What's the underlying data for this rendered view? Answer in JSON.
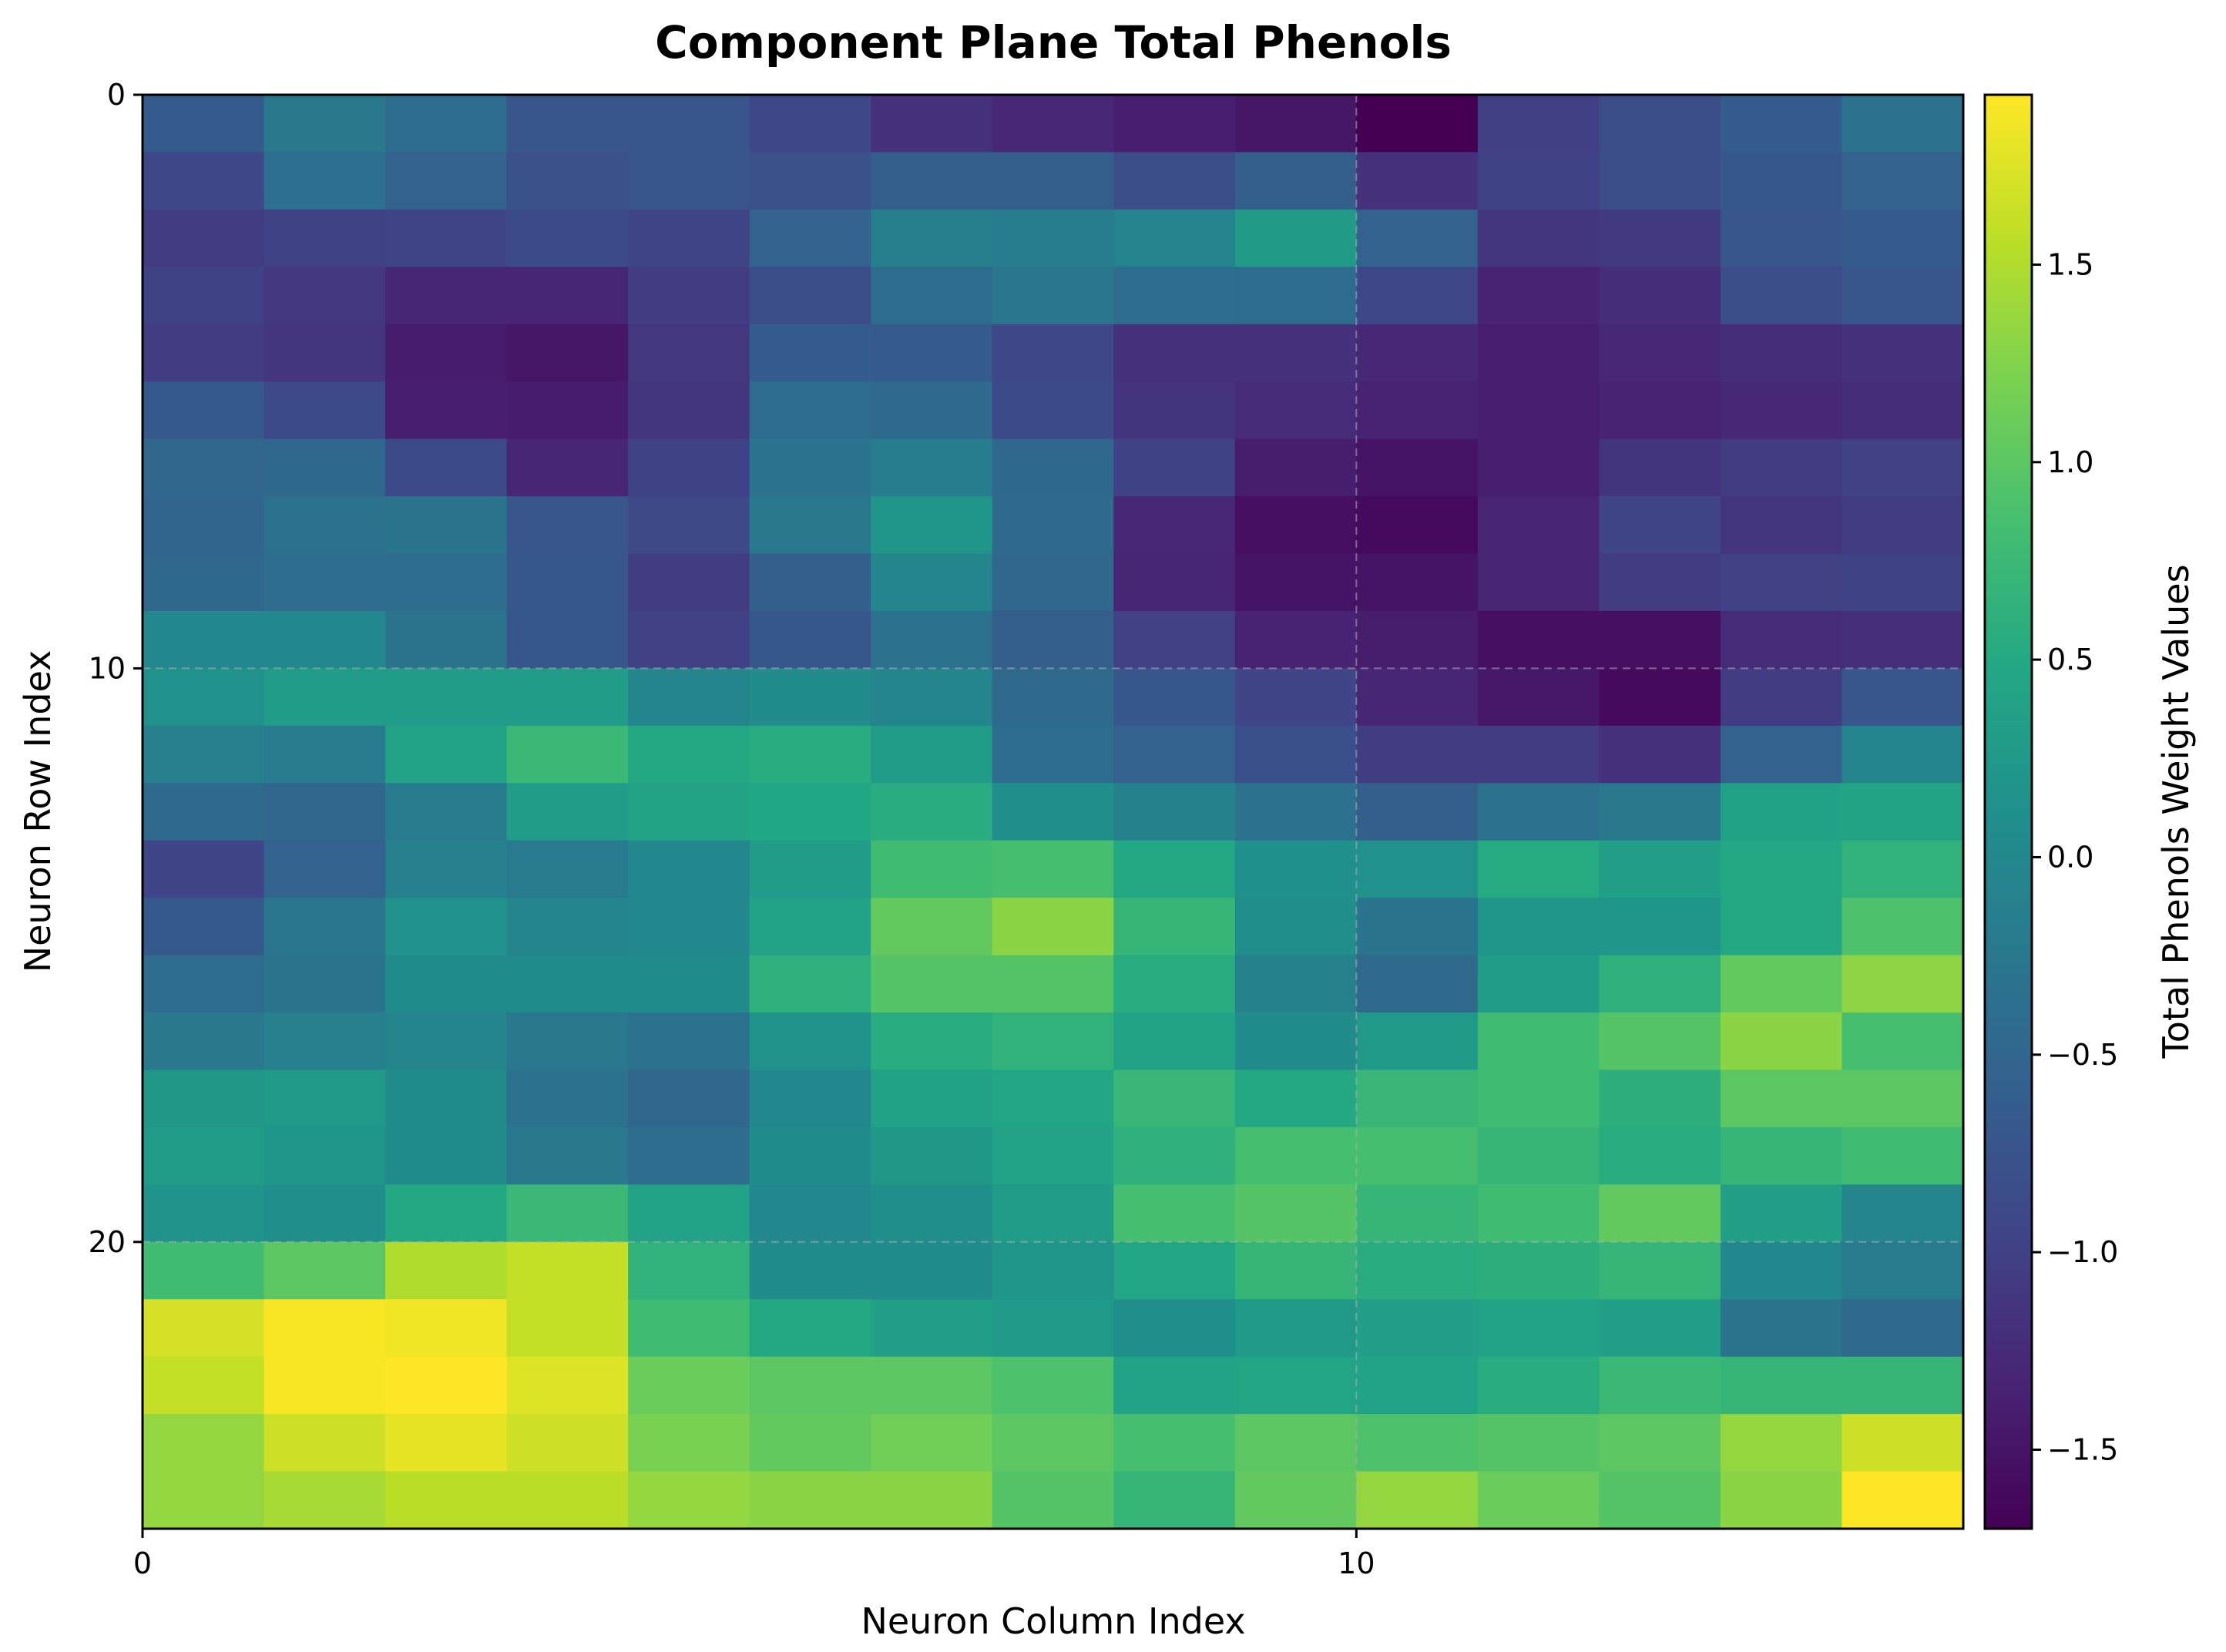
{
  "chart_data": {
    "type": "heatmap",
    "title": "Component Plane Total Phenols",
    "xlabel": "Neuron Column Index",
    "ylabel": "Neuron Row Index",
    "colorbar_label": "Total Phenols Weight Values",
    "colormap": "viridis",
    "rows": 25,
    "cols": 15,
    "xlim": [
      0,
      15
    ],
    "ylim": [
      25,
      0
    ],
    "x_ticks": [
      0,
      10
    ],
    "x_tick_labels": [
      "0",
      "10"
    ],
    "y_ticks": [
      0,
      10,
      20
    ],
    "y_tick_labels": [
      "0",
      "10",
      "20"
    ],
    "vmin": -1.7,
    "vmax": 1.93,
    "colorbar_ticks": [
      1.5,
      1.0,
      0.5,
      0.0,
      -0.5,
      -1.0,
      -1.5
    ],
    "colorbar_tick_labels": [
      "1.5",
      "1.0",
      "0.5",
      "0.0",
      "−0.5",
      "−1.0",
      "−1.5"
    ],
    "grid": "dashed at major ticks",
    "values": [
      [
        -0.65,
        -0.25,
        -0.42,
        -0.72,
        -0.72,
        -0.92,
        -1.18,
        -1.28,
        -1.38,
        -1.48,
        -1.7,
        -1.02,
        -0.82,
        -0.62,
        -0.35
      ],
      [
        -0.92,
        -0.38,
        -0.55,
        -0.78,
        -0.72,
        -0.78,
        -0.6,
        -0.6,
        -0.82,
        -0.6,
        -1.18,
        -0.98,
        -0.82,
        -0.7,
        -0.55
      ],
      [
        -1.05,
        -0.98,
        -0.95,
        -0.88,
        -0.95,
        -0.55,
        -0.15,
        -0.18,
        -0.08,
        0.28,
        -0.55,
        -1.12,
        -1.08,
        -0.72,
        -0.65
      ],
      [
        -0.98,
        -1.1,
        -1.3,
        -1.3,
        -1.05,
        -0.82,
        -0.42,
        -0.28,
        -0.4,
        -0.42,
        -0.92,
        -1.35,
        -1.22,
        -0.82,
        -0.72
      ],
      [
        -1.05,
        -1.12,
        -1.42,
        -1.48,
        -1.1,
        -0.62,
        -0.65,
        -0.92,
        -1.18,
        -1.18,
        -1.28,
        -1.38,
        -1.28,
        -1.22,
        -1.18
      ],
      [
        -0.68,
        -0.88,
        -1.38,
        -1.42,
        -1.12,
        -0.42,
        -0.45,
        -0.88,
        -1.15,
        -1.25,
        -1.35,
        -1.38,
        -1.35,
        -1.28,
        -1.22
      ],
      [
        -0.5,
        -0.48,
        -0.88,
        -1.3,
        -0.98,
        -0.32,
        -0.18,
        -0.48,
        -0.98,
        -1.4,
        -1.5,
        -1.38,
        -1.15,
        -1.05,
        -1.0
      ],
      [
        -0.52,
        -0.35,
        -0.3,
        -0.72,
        -0.9,
        -0.25,
        0.2,
        -0.45,
        -1.28,
        -1.55,
        -1.6,
        -1.32,
        -0.95,
        -1.12,
        -1.05
      ],
      [
        -0.48,
        -0.4,
        -0.4,
        -0.7,
        -1.05,
        -0.6,
        -0.05,
        -0.5,
        -1.3,
        -1.5,
        -1.5,
        -1.32,
        -1.05,
        -1.0,
        -0.98
      ],
      [
        0.0,
        0.0,
        -0.3,
        -0.7,
        -1.0,
        -0.7,
        -0.35,
        -0.6,
        -1.0,
        -1.35,
        -1.4,
        -1.55,
        -1.55,
        -1.25,
        -1.2
      ],
      [
        0.15,
        0.3,
        0.3,
        0.3,
        -0.05,
        0.05,
        -0.05,
        -0.45,
        -0.7,
        -0.95,
        -1.3,
        -1.45,
        -1.6,
        -1.05,
        -0.72
      ],
      [
        -0.12,
        -0.22,
        0.4,
        0.75,
        0.5,
        0.55,
        0.3,
        -0.42,
        -0.55,
        -0.8,
        -1.05,
        -1.05,
        -1.18,
        -0.55,
        -0.05
      ],
      [
        -0.45,
        -0.5,
        -0.2,
        0.3,
        0.42,
        0.48,
        0.55,
        0.1,
        -0.1,
        -0.35,
        -0.6,
        -0.35,
        -0.25,
        0.38,
        0.42
      ],
      [
        -0.95,
        -0.55,
        -0.12,
        -0.22,
        0.0,
        0.3,
        0.8,
        0.85,
        0.5,
        0.12,
        0.15,
        0.52,
        0.35,
        0.5,
        0.65
      ],
      [
        -0.68,
        -0.28,
        0.15,
        -0.05,
        0.0,
        0.4,
        1.05,
        1.3,
        0.7,
        0.1,
        -0.3,
        0.2,
        0.2,
        0.5,
        0.9
      ],
      [
        -0.4,
        -0.3,
        0.05,
        0.05,
        0.05,
        0.62,
        0.95,
        0.95,
        0.55,
        -0.1,
        -0.45,
        0.3,
        0.62,
        1.05,
        1.32
      ],
      [
        -0.25,
        -0.12,
        -0.05,
        -0.25,
        -0.35,
        0.18,
        0.55,
        0.65,
        0.42,
        0.05,
        0.25,
        0.8,
        0.95,
        1.3,
        0.85
      ],
      [
        0.22,
        0.25,
        0.05,
        -0.35,
        -0.5,
        0.0,
        0.38,
        0.45,
        0.72,
        0.5,
        0.72,
        0.8,
        0.6,
        1.0,
        1.0
      ],
      [
        0.3,
        0.2,
        0.05,
        -0.25,
        -0.4,
        0.05,
        0.22,
        0.4,
        0.62,
        0.85,
        0.85,
        0.7,
        0.55,
        0.7,
        0.8
      ],
      [
        0.18,
        0.1,
        0.5,
        0.75,
        0.4,
        0.0,
        0.1,
        0.3,
        0.85,
        0.95,
        0.7,
        0.8,
        1.05,
        0.35,
        -0.05
      ],
      [
        0.8,
        1.0,
        1.5,
        1.6,
        0.65,
        0.05,
        0.05,
        0.2,
        0.45,
        0.7,
        0.55,
        0.6,
        0.7,
        0.0,
        -0.2
      ],
      [
        1.7,
        1.9,
        1.85,
        1.6,
        0.8,
        0.5,
        0.35,
        0.25,
        0.1,
        0.25,
        0.35,
        0.4,
        0.35,
        -0.3,
        -0.45
      ],
      [
        1.6,
        1.9,
        1.93,
        1.75,
        1.1,
        1.0,
        1.0,
        0.9,
        0.4,
        0.45,
        0.4,
        0.55,
        0.75,
        0.7,
        0.7
      ],
      [
        1.35,
        1.65,
        1.8,
        1.65,
        1.2,
        1.05,
        1.15,
        1.0,
        0.85,
        1.0,
        0.9,
        0.95,
        1.0,
        1.35,
        1.65
      ],
      [
        1.35,
        1.45,
        1.55,
        1.55,
        1.35,
        1.3,
        1.3,
        0.95,
        0.7,
        1.05,
        1.35,
        1.1,
        0.95,
        1.3,
        1.93
      ]
    ]
  }
}
